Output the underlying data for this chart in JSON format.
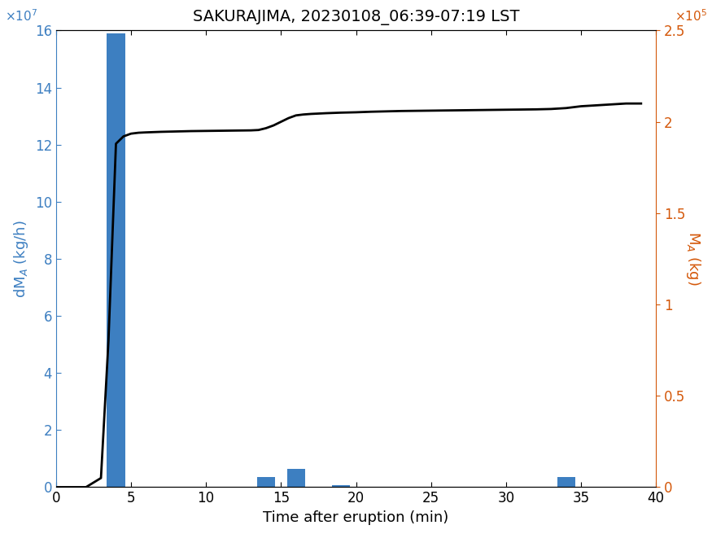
{
  "title": "SAKURAJIMA, 20230108_06:39-07:19 LST",
  "xlabel": "Time after eruption (min)",
  "ylabel_left": "dM$_A$ (kg/h)",
  "ylabel_right": "M$_A$ (kg)",
  "bar_color": "#3d7fc1",
  "line_color": "#000000",
  "left_axis_color": "#3d7fc1",
  "right_axis_color": "#d4580a",
  "xlim": [
    0,
    40
  ],
  "ylim_left": [
    0,
    160000000.0
  ],
  "ylim_right": [
    0,
    250000.0
  ],
  "bar_x": [
    1.0,
    4.0,
    14.0,
    16.0,
    19.0,
    26.0,
    34.0
  ],
  "bar_heights": [
    200000.0,
    159000000.0,
    3500000.0,
    6500000.0,
    700000.0,
    150000.0,
    3500000.0
  ],
  "bar_width": 1.2,
  "line_x": [
    0,
    0.5,
    1.0,
    2.0,
    3.0,
    3.5,
    4.0,
    4.5,
    5.0,
    5.5,
    6.0,
    7.0,
    8.0,
    9.0,
    10.0,
    11.0,
    12.0,
    13.0,
    13.5,
    14.0,
    14.5,
    15.0,
    15.5,
    16.0,
    16.5,
    17.0,
    17.5,
    18.0,
    19.0,
    20.0,
    21.0,
    22.0,
    23.0,
    24.0,
    25.0,
    26.0,
    27.0,
    28.0,
    29.0,
    30.0,
    31.0,
    32.0,
    33.0,
    34.0,
    34.5,
    35.0,
    36.0,
    37.0,
    38.0,
    39.0
  ],
  "line_y": [
    0,
    0,
    0,
    0,
    5000,
    80000,
    188000,
    192000,
    193500,
    194000,
    194200,
    194500,
    194700,
    194900,
    195000,
    195100,
    195200,
    195300,
    195500,
    196500,
    198000,
    200000,
    202000,
    203500,
    204000,
    204300,
    204500,
    204700,
    205000,
    205200,
    205500,
    205700,
    205900,
    206000,
    206100,
    206200,
    206300,
    206400,
    206500,
    206600,
    206700,
    206800,
    207000,
    207500,
    208000,
    208500,
    209000,
    209500,
    210000,
    210000
  ],
  "left_yticks": [
    0,
    2,
    4,
    6,
    8,
    10,
    12,
    14,
    16
  ],
  "left_ytick_scale": 10000000.0,
  "right_yticks": [
    0,
    0.5,
    1.0,
    1.5,
    2.0,
    2.5
  ],
  "right_ytick_scale": 100000.0,
  "xticks": [
    0,
    5,
    10,
    15,
    20,
    25,
    30,
    35,
    40
  ],
  "left_exponent_label": "×10$^7$",
  "right_exponent_label": "×10$^5$"
}
